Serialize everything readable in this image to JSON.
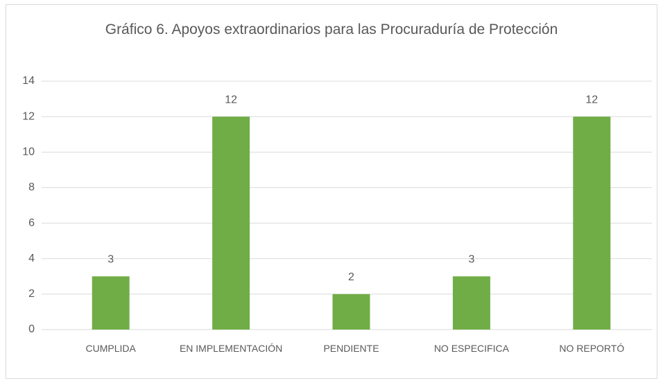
{
  "chart_data": {
    "type": "bar",
    "title": "Gráfico 6. Apoyos extraordinarios para las Procuraduría de Protección",
    "categories": [
      "CUMPLIDA",
      "EN IMPLEMENTACIÓN",
      "PENDIENTE",
      "NO ESPECIFICA",
      "NO REPORTÓ"
    ],
    "values": [
      3,
      12,
      2,
      3,
      12
    ],
    "color": "#70ad47",
    "ylim": [
      0,
      14
    ],
    "yticks": [
      0,
      2,
      4,
      6,
      8,
      10,
      12,
      14
    ],
    "grid": true
  }
}
